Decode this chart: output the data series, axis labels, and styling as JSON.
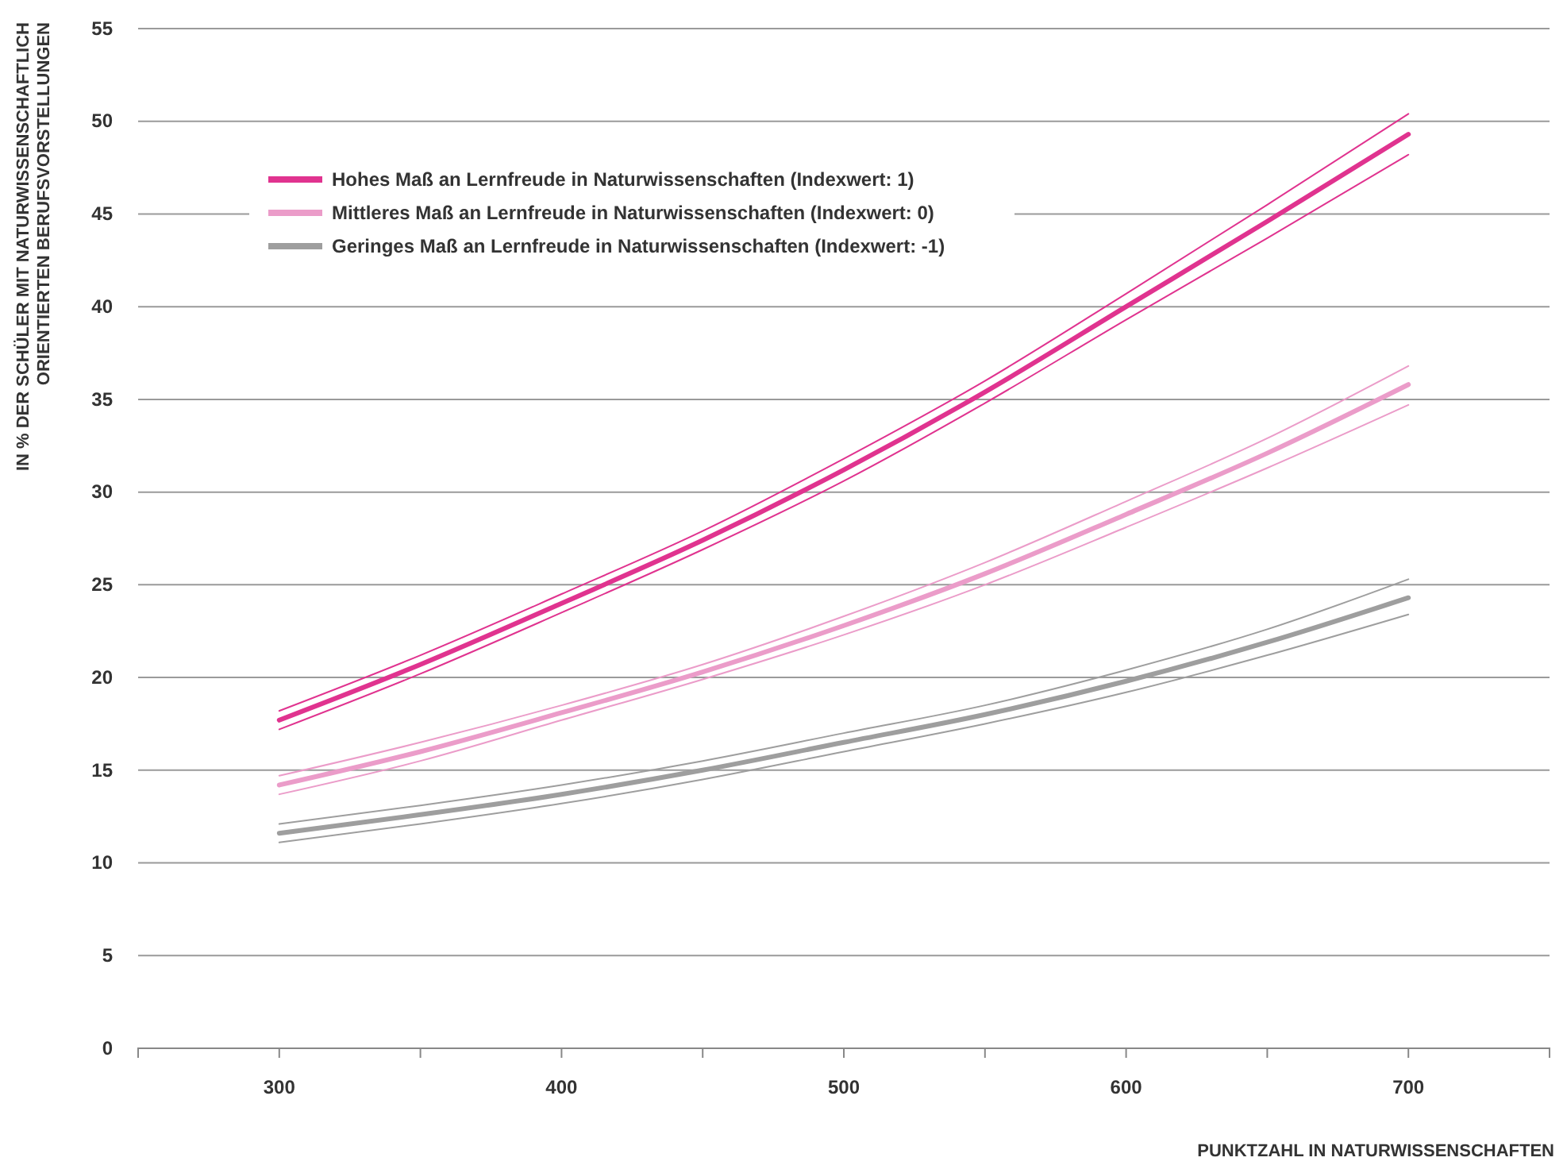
{
  "chart_data": {
    "type": "line",
    "xlabel": "PUNKTZAHL IN NATURWISSENSCHAFTEN",
    "ylabel": "IN % DER SCHÜLER MIT NATURWISSENSCHAFTLICH ORIENTIERTEN BERUFSVORSTELLUNGEN",
    "x": [
      300,
      350,
      400,
      450,
      500,
      550,
      600,
      650,
      700
    ],
    "series": [
      {
        "name": "Hohes Maß an Lernfreude in Naturwissenschaften  (Indexwert: 1)",
        "color": "#e0338f",
        "values": [
          17.7,
          20.7,
          24.0,
          27.4,
          31.2,
          35.4,
          40.0,
          44.6,
          49.3
        ]
      },
      {
        "color": "#e0338f",
        "values": [
          17.2,
          20.2,
          23.5,
          26.9,
          30.6,
          34.8,
          39.3,
          43.7,
          48.2
        ]
      },
      {
        "color": "#e0338f",
        "values": [
          18.2,
          21.2,
          24.5,
          27.9,
          31.8,
          36.0,
          40.7,
          45.5,
          50.4
        ]
      },
      {
        "name": "Mittleres Maß an Lernfreude in Naturwissenschaften  (Indexwert: 0)",
        "color": "#eb9cc9",
        "values": [
          14.2,
          16.0,
          18.1,
          20.3,
          22.8,
          25.6,
          28.8,
          32.1,
          35.8
        ]
      },
      {
        "color": "#eb9cc9",
        "values": [
          13.7,
          15.5,
          17.7,
          19.9,
          22.3,
          25.0,
          28.1,
          31.3,
          34.7
        ]
      },
      {
        "color": "#eb9cc9",
        "values": [
          14.7,
          16.5,
          18.5,
          20.7,
          23.3,
          26.2,
          29.5,
          32.9,
          36.8
        ]
      },
      {
        "name": "Geringes Maß an Lernfreude in Naturwissenschaften (Indexwert: -1)",
        "color": "#9e9e9e",
        "values": [
          11.6,
          12.6,
          13.7,
          15.0,
          16.5,
          18.0,
          19.8,
          21.9,
          24.3
        ]
      },
      {
        "color": "#9e9e9e",
        "values": [
          11.1,
          12.1,
          13.2,
          14.5,
          16.0,
          17.5,
          19.2,
          21.2,
          23.4
        ]
      },
      {
        "color": "#9e9e9e",
        "values": [
          12.1,
          13.1,
          14.2,
          15.5,
          17.0,
          18.5,
          20.4,
          22.6,
          25.3
        ]
      }
    ],
    "xlim": [
      250,
      750
    ],
    "xticks": [
      {
        "value": 250,
        "label": null
      },
      300,
      {
        "value": 350,
        "label": null
      },
      400,
      {
        "value": 450,
        "label": null
      },
      500,
      {
        "value": 550,
        "label": null
      },
      600,
      {
        "value": 650,
        "label": null
      },
      700,
      {
        "value": 750,
        "label": null
      }
    ],
    "ylim": [
      0,
      55
    ],
    "yticks": [
      0,
      5,
      10,
      15,
      20,
      25,
      30,
      35,
      40,
      45,
      50,
      55
    ],
    "grid": "y",
    "legend": "top left",
    "marker": "none",
    "line_style": "solid"
  }
}
